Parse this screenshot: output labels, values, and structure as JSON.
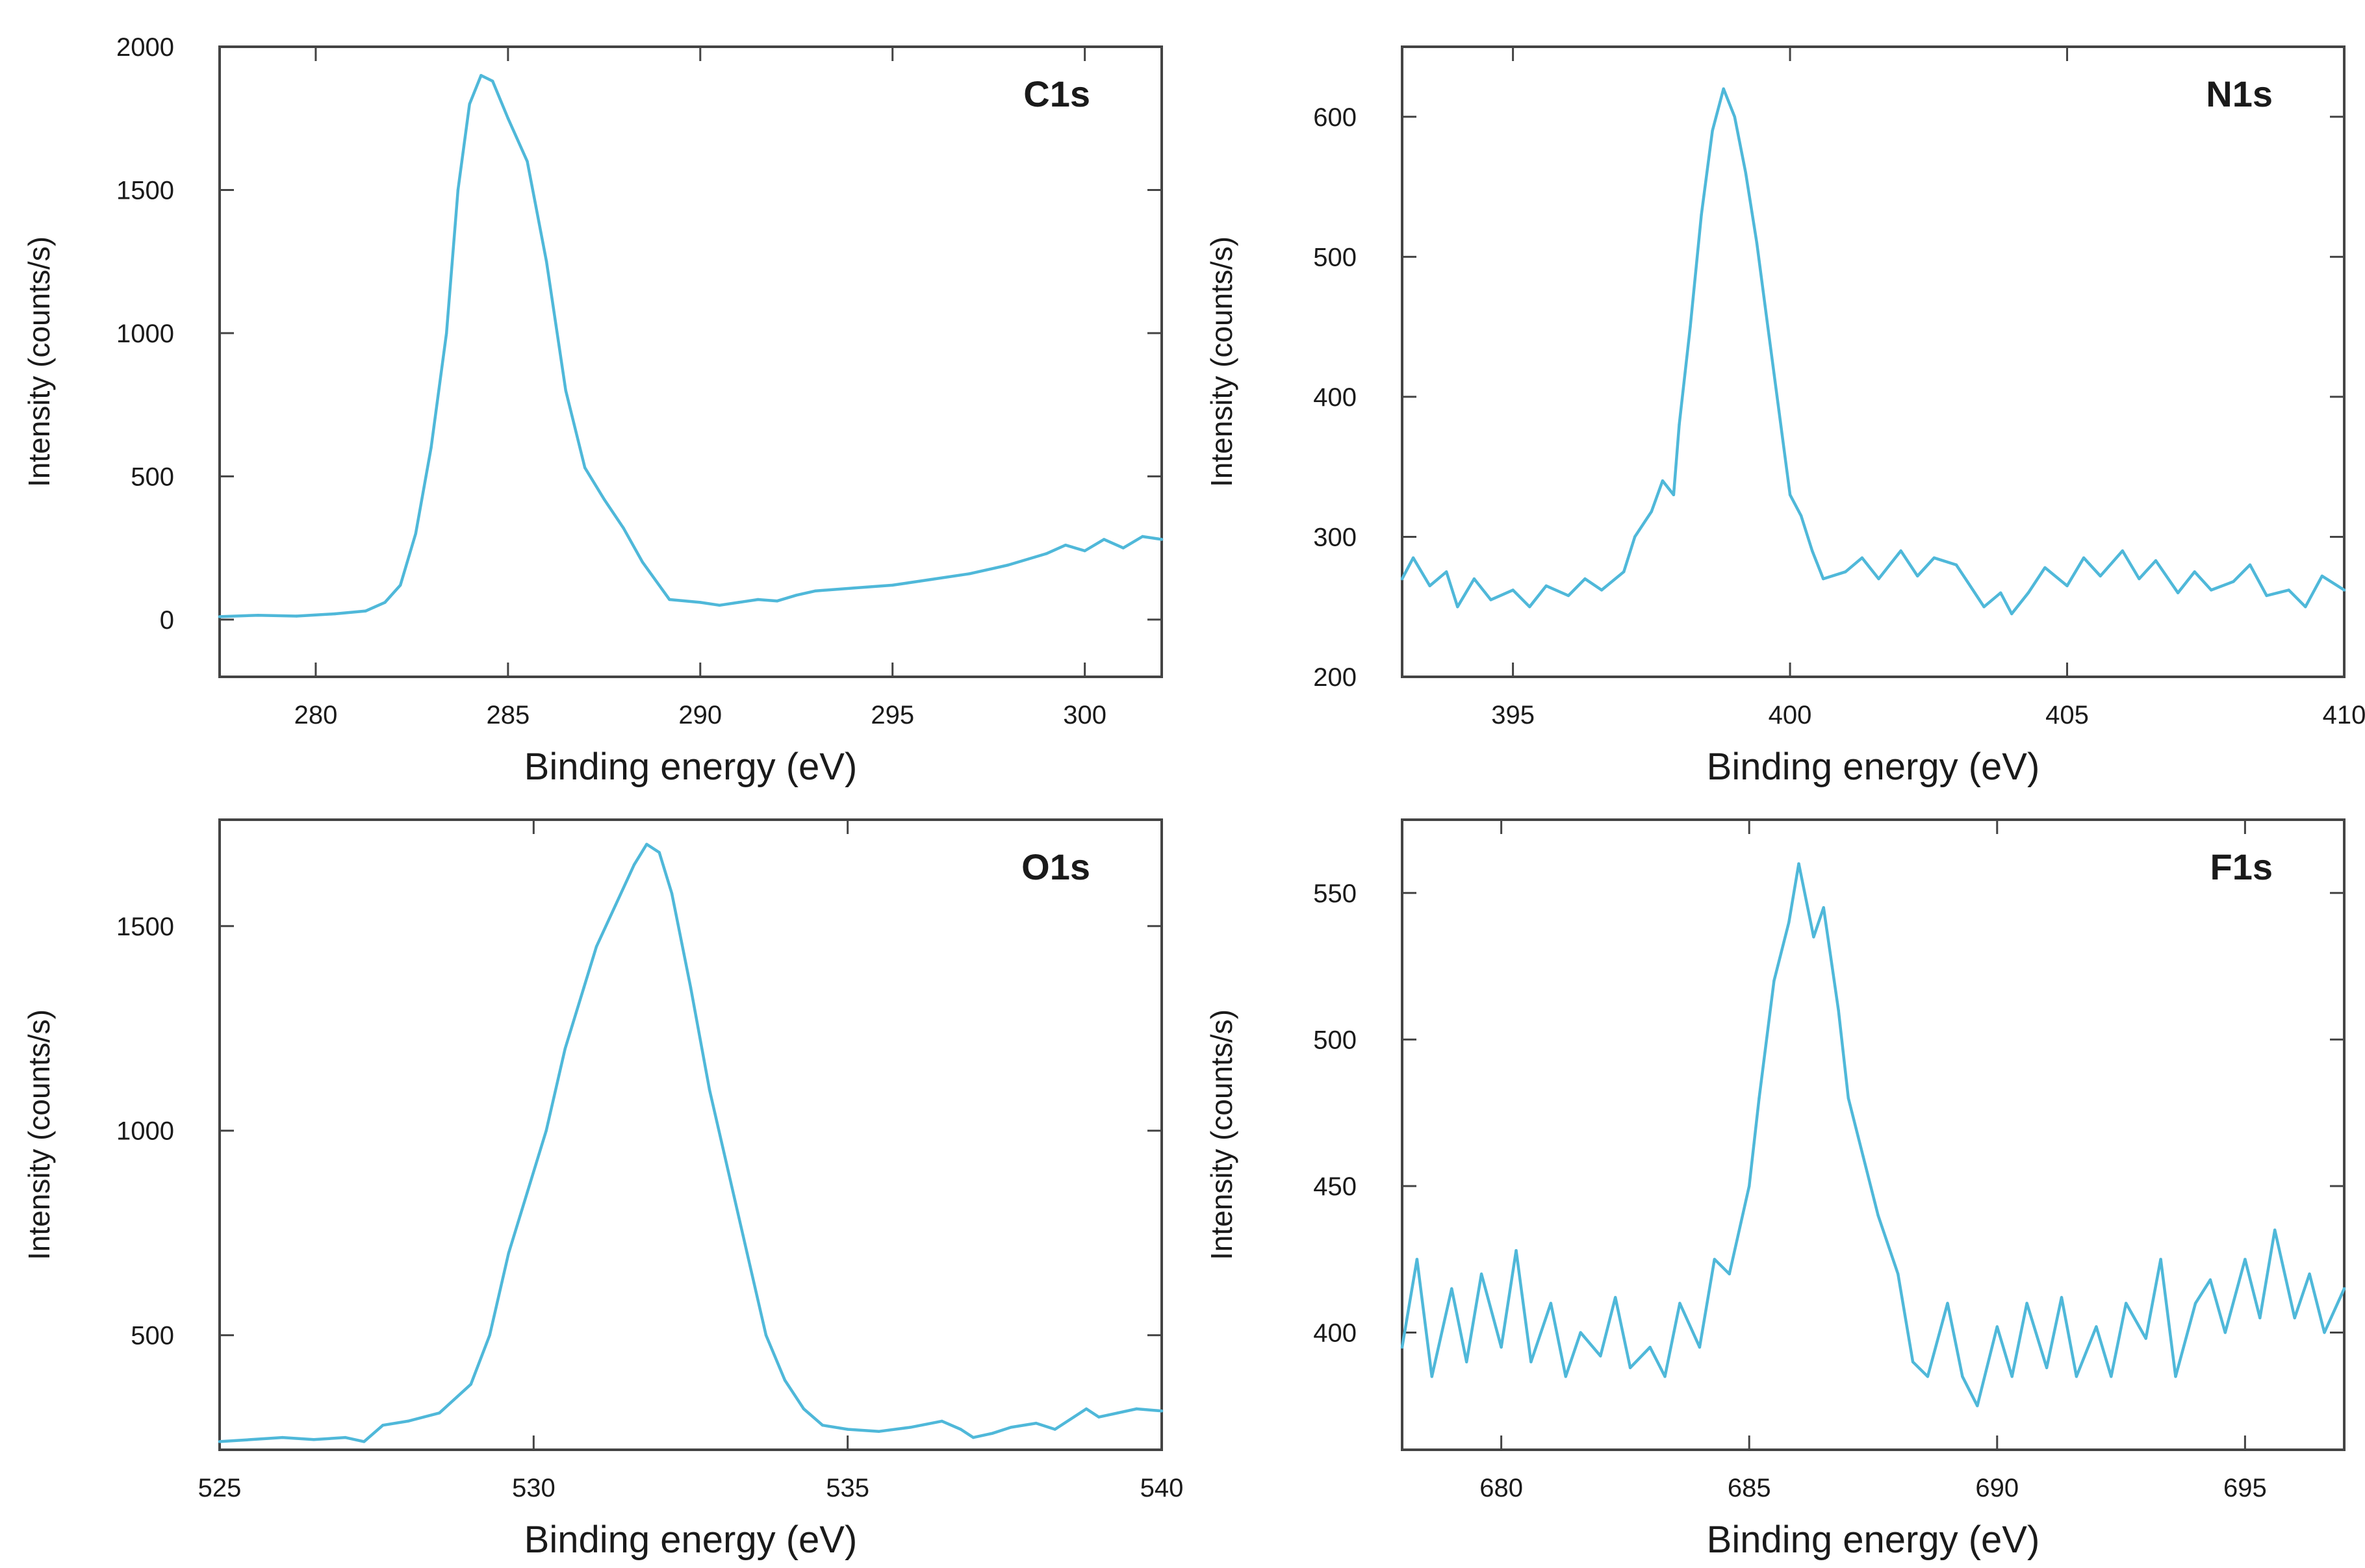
{
  "style": {
    "line_color": "#4fb8d9",
    "frame_color": "#444444",
    "background": "#ffffff"
  },
  "chart_data": [
    {
      "type": "line",
      "panel_label": "C1s",
      "xlabel": "Binding energy (eV)",
      "ylabel": "Intensity (counts/s)",
      "xlim": [
        277.5,
        302
      ],
      "ylim": [
        -200,
        2000
      ],
      "xticks": [
        280,
        285,
        290,
        295,
        300
      ],
      "yticks": [
        0,
        500,
        1000,
        1500,
        2000
      ],
      "grid": false,
      "series": [
        {
          "points": [
            [
              277.5,
              10
            ],
            [
              278.5,
              15
            ],
            [
              279.5,
              12
            ],
            [
              280.5,
              20
            ],
            [
              281.3,
              30
            ],
            [
              281.8,
              60
            ],
            [
              282.2,
              120
            ],
            [
              282.6,
              300
            ],
            [
              283,
              600
            ],
            [
              283.4,
              1000
            ],
            [
              283.7,
              1500
            ],
            [
              284,
              1800
            ],
            [
              284.3,
              1900
            ],
            [
              284.6,
              1880
            ],
            [
              285,
              1750
            ],
            [
              285.5,
              1600
            ],
            [
              286,
              1250
            ],
            [
              286.5,
              800
            ],
            [
              287,
              530
            ],
            [
              287.5,
              420
            ],
            [
              288,
              320
            ],
            [
              288.5,
              200
            ],
            [
              289.2,
              70
            ],
            [
              290,
              60
            ],
            [
              290.5,
              50
            ],
            [
              291,
              60
            ],
            [
              291.5,
              70
            ],
            [
              292,
              65
            ],
            [
              292.5,
              85
            ],
            [
              293,
              100
            ],
            [
              294,
              110
            ],
            [
              295,
              120
            ],
            [
              296,
              140
            ],
            [
              297,
              160
            ],
            [
              298,
              190
            ],
            [
              299,
              230
            ],
            [
              299.5,
              260
            ],
            [
              300,
              240
            ],
            [
              300.5,
              280
            ],
            [
              301,
              250
            ],
            [
              301.5,
              290
            ],
            [
              302,
              280
            ]
          ]
        }
      ]
    },
    {
      "type": "line",
      "panel_label": "N1s",
      "xlabel": "Binding energy (eV)",
      "ylabel": "Intensity (counts/s)",
      "xlim": [
        393,
        410
      ],
      "ylim": [
        200,
        650
      ],
      "xticks": [
        395,
        400,
        405,
        410
      ],
      "yticks": [
        200,
        300,
        400,
        500,
        600
      ],
      "grid": false,
      "series": [
        {
          "points": [
            [
              393,
              270
            ],
            [
              393.2,
              285
            ],
            [
              393.5,
              265
            ],
            [
              393.8,
              275
            ],
            [
              394,
              250
            ],
            [
              394.3,
              270
            ],
            [
              394.6,
              255
            ],
            [
              395,
              262
            ],
            [
              395.3,
              250
            ],
            [
              395.6,
              265
            ],
            [
              396,
              258
            ],
            [
              396.3,
              270
            ],
            [
              396.6,
              262
            ],
            [
              397,
              275
            ],
            [
              397.2,
              300
            ],
            [
              397.5,
              318
            ],
            [
              397.7,
              340
            ],
            [
              397.9,
              330
            ],
            [
              398,
              380
            ],
            [
              398.2,
              450
            ],
            [
              398.4,
              530
            ],
            [
              398.6,
              590
            ],
            [
              398.8,
              620
            ],
            [
              399,
              600
            ],
            [
              399.2,
              560
            ],
            [
              399.4,
              510
            ],
            [
              399.6,
              450
            ],
            [
              399.8,
              390
            ],
            [
              400,
              330
            ],
            [
              400.2,
              315
            ],
            [
              400.4,
              290
            ],
            [
              400.6,
              270
            ],
            [
              401,
              275
            ],
            [
              401.3,
              285
            ],
            [
              401.6,
              270
            ],
            [
              402,
              290
            ],
            [
              402.3,
              272
            ],
            [
              402.6,
              285
            ],
            [
              403,
              280
            ],
            [
              403.2,
              268
            ],
            [
              403.5,
              250
            ],
            [
              403.8,
              260
            ],
            [
              404,
              245
            ],
            [
              404.3,
              260
            ],
            [
              404.6,
              278
            ],
            [
              405,
              265
            ],
            [
              405.3,
              285
            ],
            [
              405.6,
              272
            ],
            [
              406,
              290
            ],
            [
              406.3,
              270
            ],
            [
              406.6,
              283
            ],
            [
              407,
              260
            ],
            [
              407.3,
              275
            ],
            [
              407.6,
              262
            ],
            [
              408,
              268
            ],
            [
              408.3,
              280
            ],
            [
              408.6,
              258
            ],
            [
              409,
              262
            ],
            [
              409.3,
              250
            ],
            [
              409.6,
              272
            ],
            [
              410,
              262
            ]
          ]
        }
      ]
    },
    {
      "type": "line",
      "panel_label": "O1s",
      "xlabel": "Binding energy (eV)",
      "ylabel": "Intensity (counts/s)",
      "xlim": [
        525,
        540
      ],
      "ylim": [
        220,
        1760
      ],
      "xticks": [
        525,
        530,
        535,
        540
      ],
      "yticks": [
        500,
        1000,
        1500
      ],
      "grid": false,
      "series": [
        {
          "points": [
            [
              525,
              240
            ],
            [
              525.5,
              245
            ],
            [
              526,
              250
            ],
            [
              526.5,
              245
            ],
            [
              527,
              250
            ],
            [
              527.3,
              240
            ],
            [
              527.6,
              280
            ],
            [
              528,
              290
            ],
            [
              528.5,
              310
            ],
            [
              529,
              380
            ],
            [
              529.3,
              500
            ],
            [
              529.6,
              700
            ],
            [
              529.9,
              850
            ],
            [
              530.2,
              1000
            ],
            [
              530.5,
              1200
            ],
            [
              530.8,
              1350
            ],
            [
              531,
              1450
            ],
            [
              531.3,
              1550
            ],
            [
              531.6,
              1650
            ],
            [
              531.8,
              1700
            ],
            [
              532,
              1680
            ],
            [
              532.2,
              1580
            ],
            [
              532.5,
              1350
            ],
            [
              532.8,
              1100
            ],
            [
              533.1,
              900
            ],
            [
              533.4,
              700
            ],
            [
              533.7,
              500
            ],
            [
              534,
              390
            ],
            [
              534.3,
              320
            ],
            [
              534.6,
              280
            ],
            [
              535,
              270
            ],
            [
              535.5,
              265
            ],
            [
              536,
              275
            ],
            [
              536.5,
              290
            ],
            [
              536.8,
              270
            ],
            [
              537,
              250
            ],
            [
              537.3,
              260
            ],
            [
              537.6,
              275
            ],
            [
              538,
              285
            ],
            [
              538.3,
              270
            ],
            [
              538.6,
              300
            ],
            [
              538.8,
              320
            ],
            [
              539,
              300
            ],
            [
              539.3,
              310
            ],
            [
              539.6,
              320
            ],
            [
              540,
              315
            ]
          ]
        }
      ]
    },
    {
      "type": "line",
      "panel_label": "F1s",
      "xlabel": "Binding energy (eV)",
      "ylabel": "Intensity (counts/s)",
      "xlim": [
        678,
        697
      ],
      "ylim": [
        360,
        575
      ],
      "xticks": [
        680,
        685,
        690,
        695
      ],
      "yticks": [
        400,
        450,
        500,
        550
      ],
      "grid": false,
      "series": [
        {
          "points": [
            [
              678,
              395
            ],
            [
              678.3,
              425
            ],
            [
              678.6,
              385
            ],
            [
              679,
              415
            ],
            [
              679.3,
              390
            ],
            [
              679.6,
              420
            ],
            [
              680,
              395
            ],
            [
              680.3,
              428
            ],
            [
              680.6,
              390
            ],
            [
              681,
              410
            ],
            [
              681.3,
              385
            ],
            [
              681.6,
              400
            ],
            [
              682,
              392
            ],
            [
              682.3,
              412
            ],
            [
              682.6,
              388
            ],
            [
              683,
              395
            ],
            [
              683.3,
              385
            ],
            [
              683.6,
              410
            ],
            [
              684,
              395
            ],
            [
              684.3,
              425
            ],
            [
              684.6,
              420
            ],
            [
              685,
              450
            ],
            [
              685.2,
              480
            ],
            [
              685.5,
              520
            ],
            [
              685.8,
              540
            ],
            [
              686,
              560
            ],
            [
              686.3,
              535
            ],
            [
              686.5,
              545
            ],
            [
              686.8,
              510
            ],
            [
              687,
              480
            ],
            [
              687.3,
              460
            ],
            [
              687.6,
              440
            ],
            [
              688,
              420
            ],
            [
              688.3,
              390
            ],
            [
              688.6,
              385
            ],
            [
              689,
              410
            ],
            [
              689.3,
              385
            ],
            [
              689.6,
              375
            ],
            [
              690,
              402
            ],
            [
              690.3,
              385
            ],
            [
              690.6,
              410
            ],
            [
              691,
              388
            ],
            [
              691.3,
              412
            ],
            [
              691.6,
              385
            ],
            [
              692,
              402
            ],
            [
              692.3,
              385
            ],
            [
              692.6,
              410
            ],
            [
              693,
              398
            ],
            [
              693.3,
              425
            ],
            [
              693.6,
              385
            ],
            [
              694,
              410
            ],
            [
              694.3,
              418
            ],
            [
              694.6,
              400
            ],
            [
              695,
              425
            ],
            [
              695.3,
              405
            ],
            [
              695.6,
              435
            ],
            [
              696,
              405
            ],
            [
              696.3,
              420
            ],
            [
              696.6,
              400
            ],
            [
              697,
              415
            ]
          ]
        }
      ]
    }
  ]
}
